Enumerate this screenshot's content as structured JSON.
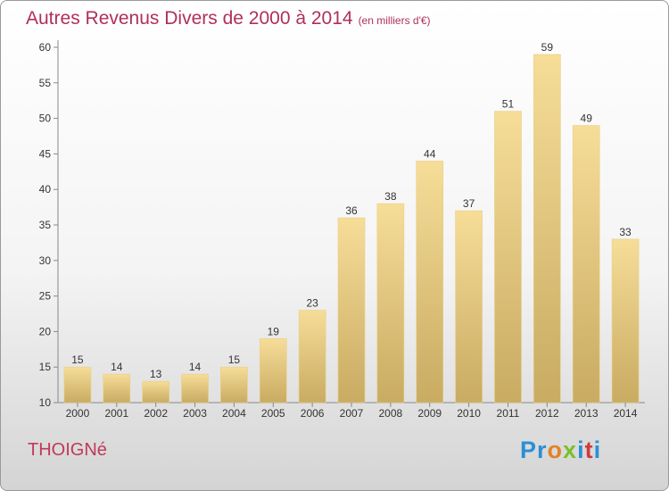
{
  "header": {
    "title": "Autres Revenus Divers de 2000 à 2014",
    "unit_note": "(en milliers d'€)"
  },
  "footer": {
    "place": "THOIGNé",
    "logo": {
      "text": "Proxiti",
      "letter_colors": [
        "#2a8fd6",
        "#2a8fd6",
        "#e0832a",
        "#7abf2a",
        "#2a8fd6",
        "#d23a3a",
        "#2a8fd6"
      ]
    }
  },
  "colors": {
    "title": "#b0305a",
    "bar_light": "#f6dd98",
    "bar_dark": "#c9ab62",
    "axis": "#888888",
    "grid": "#d0d0d0",
    "place": "#c03a5a"
  },
  "chart_data": {
    "type": "bar",
    "title": "Autres Revenus Divers de 2000 à 2014",
    "subtitle": "(en milliers d'€)",
    "xlabel": "",
    "ylabel": "",
    "categories": [
      "2000",
      "2001",
      "2002",
      "2003",
      "2004",
      "2005",
      "2006",
      "2007",
      "2008",
      "2009",
      "2010",
      "2011",
      "2012",
      "2013",
      "2014"
    ],
    "values": [
      15,
      14,
      13,
      14,
      15,
      19,
      23,
      36,
      38,
      44,
      37,
      51,
      59,
      49,
      33
    ],
    "ylim": [
      10,
      60
    ],
    "yticks": [
      10,
      15,
      20,
      25,
      30,
      35,
      40,
      45,
      50,
      55,
      60
    ],
    "grid": false,
    "data_labels": true
  }
}
